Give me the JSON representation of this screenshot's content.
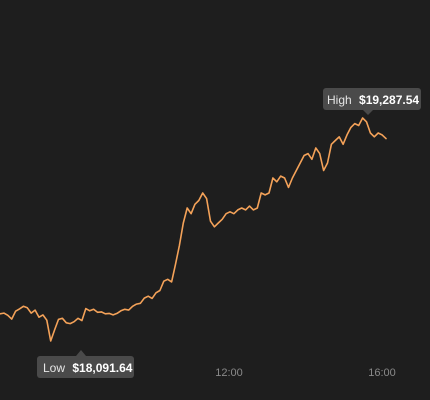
{
  "chart_data": {
    "type": "line",
    "x_ticks": [
      "12:00",
      "16:00"
    ],
    "ylim": [
      18000,
      19380
    ],
    "grid": false,
    "series": [
      {
        "color": "#f4a259",
        "values": [
          18236,
          18240,
          18228,
          18208,
          18250,
          18262,
          18276,
          18268,
          18240,
          18256,
          18218,
          18230,
          18202,
          18091,
          18150,
          18206,
          18212,
          18188,
          18184,
          18194,
          18212,
          18200,
          18264,
          18252,
          18260,
          18244,
          18246,
          18236,
          18238,
          18230,
          18238,
          18252,
          18260,
          18256,
          18276,
          18288,
          18292,
          18320,
          18330,
          18318,
          18348,
          18360,
          18410,
          18420,
          18406,
          18500,
          18600,
          18720,
          18800,
          18770,
          18820,
          18840,
          18880,
          18850,
          18730,
          18700,
          18720,
          18740,
          18770,
          18780,
          18770,
          18790,
          18800,
          18790,
          18810,
          18790,
          18800,
          18880,
          18870,
          18880,
          18960,
          18940,
          18970,
          18960,
          18910,
          18960,
          19000,
          19040,
          19080,
          19090,
          19060,
          19120,
          19090,
          19000,
          19040,
          19140,
          19160,
          19180,
          19140,
          19190,
          19230,
          19250,
          19240,
          19280,
          19260,
          19200,
          19180,
          19200,
          19190,
          19170
        ]
      }
    ],
    "annotations": {
      "high": {
        "label": "High",
        "value_text": "$19,287.54",
        "x_index": 93
      },
      "low": {
        "label": "Low",
        "value_text": "$18,091.64",
        "x_index": 13
      }
    }
  }
}
